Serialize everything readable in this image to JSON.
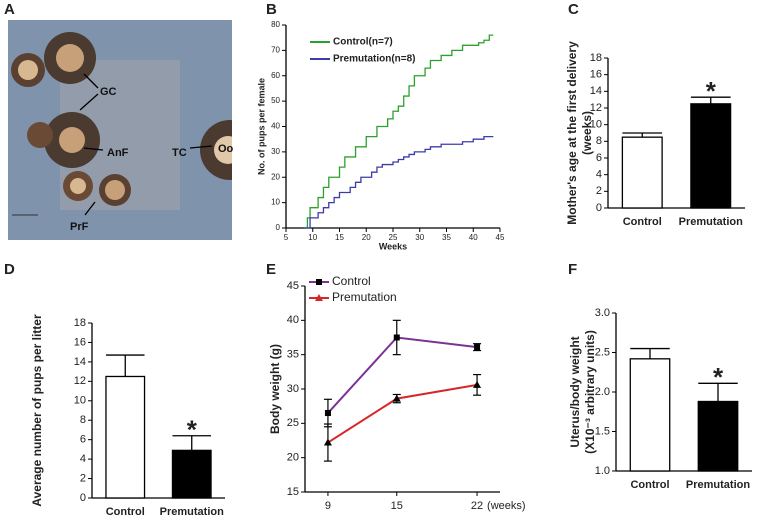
{
  "panel_a": {
    "panel_label": "A",
    "labels": [
      "GC",
      "AnF",
      "TC",
      "Oo",
      "PrF"
    ]
  },
  "chart_data": [
    {
      "type": "line",
      "panel_label": "B",
      "step": true,
      "ylabel": "No. of pups per female",
      "xlabel": "Weeks",
      "xlim": [
        5,
        45
      ],
      "xticks": [
        5,
        10,
        15,
        20,
        25,
        30,
        35,
        40,
        45
      ],
      "ylim": [
        0,
        80
      ],
      "yticks": [
        0,
        10,
        20,
        30,
        40,
        50,
        60,
        70,
        80
      ],
      "series": [
        {
          "name": "Control(n=7)",
          "color": "#2ca02c",
          "x": [
            8.5,
            9,
            9.5,
            11,
            12,
            13,
            15,
            16,
            18,
            20,
            22,
            24,
            25,
            26,
            27,
            28,
            29,
            31,
            32,
            34,
            36,
            38,
            41,
            42,
            43
          ],
          "values": [
            0,
            4,
            8,
            12,
            16,
            20,
            24,
            28,
            32,
            36,
            40,
            43,
            46,
            48,
            52,
            56,
            60,
            63,
            66,
            68,
            70,
            72,
            73,
            74,
            76
          ]
        },
        {
          "name": "Premutation(n=8)",
          "color": "#3c3ca8",
          "x": [
            8.5,
            9.5,
            11,
            12,
            13,
            14,
            15,
            17,
            18,
            19,
            21,
            22,
            23,
            25,
            26,
            27,
            28,
            29,
            31,
            32,
            34,
            38,
            40,
            42,
            43
          ],
          "values": [
            0,
            4,
            6,
            8,
            10,
            12,
            14,
            16,
            18,
            20,
            22,
            24,
            25,
            26,
            27,
            28,
            29,
            30,
            31,
            32,
            33,
            34,
            35,
            36,
            36
          ]
        }
      ]
    },
    {
      "type": "bar",
      "panel_label": "C",
      "ylabel": [
        "Mother's age at the first delivery",
        "(weeks)"
      ],
      "categories": [
        "Control",
        "Premutation"
      ],
      "values": [
        8.5,
        12.5
      ],
      "errors": [
        0.5,
        0.8
      ],
      "colors": [
        "#ffffff",
        "#000000"
      ],
      "ylim": [
        0,
        18
      ],
      "yticks": [
        0,
        2,
        4,
        6,
        8,
        10,
        12,
        14,
        16,
        18
      ],
      "annotation": "*"
    },
    {
      "type": "bar",
      "panel_label": "D",
      "ylabel": [
        "Average number of pups per litter"
      ],
      "categories": [
        "Control",
        "Premutation"
      ],
      "values": [
        12.5,
        4.9
      ],
      "errors": [
        2.2,
        1.5
      ],
      "colors": [
        "#ffffff",
        "#000000"
      ],
      "ylim": [
        0,
        18
      ],
      "yticks": [
        0,
        2,
        4,
        6,
        8,
        10,
        12,
        14,
        16,
        18
      ],
      "annotation": "*"
    },
    {
      "type": "line",
      "panel_label": "E",
      "ylabel": "Body weight (g)",
      "xlabel": "(weeks)",
      "xlim": [
        7,
        24
      ],
      "xticks": [
        9,
        15,
        22
      ],
      "ylim": [
        15,
        45
      ],
      "yticks": [
        15,
        20,
        25,
        30,
        35,
        40,
        45
      ],
      "series": [
        {
          "name": "Control",
          "color": "#7b3294",
          "marker": "square",
          "x": [
            9,
            15,
            22
          ],
          "values": [
            26.5,
            37.5,
            36.1
          ],
          "errors": [
            2,
            2.5,
            0.5
          ]
        },
        {
          "name": "Premutation",
          "color": "#d62728",
          "marker": "triangle",
          "x": [
            9,
            15,
            22
          ],
          "values": [
            22.2,
            28.6,
            30.6
          ],
          "errors": [
            2.7,
            0.6,
            1.5
          ]
        }
      ]
    },
    {
      "type": "bar",
      "panel_label": "F",
      "ylabel": [
        "Uterus/body weight",
        "(X10⁻³ arbitrary units)"
      ],
      "categories": [
        "Control",
        "Premutation"
      ],
      "values": [
        2.42,
        1.88
      ],
      "errors": [
        0.13,
        0.23
      ],
      "colors": [
        "#ffffff",
        "#000000"
      ],
      "ylim": [
        1,
        3
      ],
      "yticks": [
        {
          "value": 1,
          "label": "1.0"
        },
        {
          "value": 1.5,
          "label": "1.5"
        },
        {
          "value": 2,
          "label": "2.0"
        },
        {
          "value": 2.5,
          "label": "2.5"
        },
        {
          "value": 3,
          "label": "3.0"
        }
      ],
      "annotation": "*"
    }
  ]
}
